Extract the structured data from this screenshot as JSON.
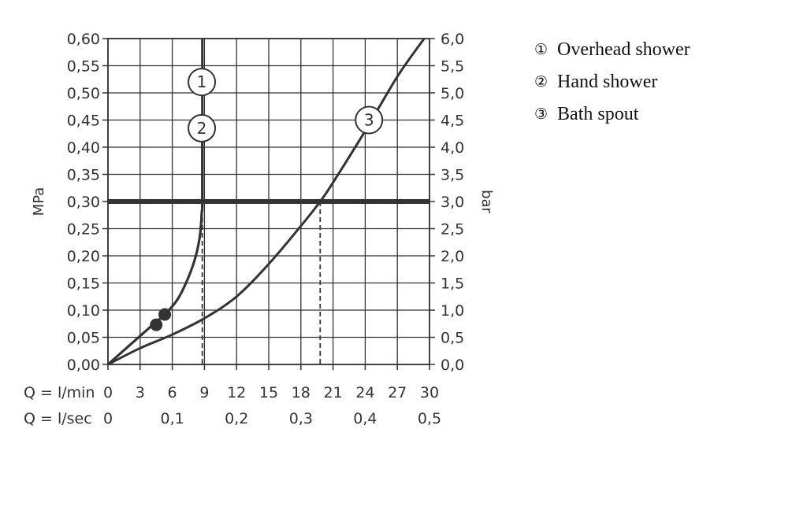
{
  "chart_data": {
    "type": "line",
    "ylabel_left": "MPa",
    "ylabel_right": "bar",
    "xlabel_1": "Q = l/min",
    "xlabel_2": "Q = l/sec",
    "xlim": [
      0,
      30
    ],
    "ylim": [
      0,
      0.6
    ],
    "grid": true,
    "x_ticks": [
      "0",
      "3",
      "6",
      "9",
      "12",
      "15",
      "18",
      "21",
      "24",
      "27",
      "30"
    ],
    "x2_ticks": [
      {
        "value": 0,
        "label": "0"
      },
      {
        "value": 6,
        "label": "0,1"
      },
      {
        "value": 12,
        "label": "0,2"
      },
      {
        "value": 18,
        "label": "0,3"
      },
      {
        "value": 24,
        "label": "0,4"
      },
      {
        "value": 30,
        "label": "0,5"
      }
    ],
    "y_ticks_left": [
      "0,00",
      "0,05",
      "0,10",
      "0,15",
      "0,20",
      "0,25",
      "0,30",
      "0,35",
      "0,40",
      "0,45",
      "0,50",
      "0,55",
      "0,60"
    ],
    "y_ticks_right": [
      "0,0",
      "0,5",
      "1,0",
      "1,5",
      "2,0",
      "2,5",
      "3,0",
      "3,5",
      "4,0",
      "4,5",
      "5,0",
      "5,5",
      "6,0"
    ],
    "reference_line": {
      "y": 0.3
    },
    "series": [
      {
        "marker": "1",
        "label_at": [
          8.9,
          0.52
        ],
        "x": [
          0,
          2,
          4,
          5.3,
          6.5,
          7.5,
          8.2,
          8.6,
          8.75,
          8.8,
          8.8,
          8.8
        ],
        "y": [
          0,
          0.035,
          0.07,
          0.092,
          0.12,
          0.16,
          0.2,
          0.24,
          0.28,
          0.3,
          0.45,
          0.6
        ]
      },
      {
        "marker": "2",
        "label_at": [
          8.9,
          0.435
        ],
        "x": [
          0,
          2,
          4,
          5.3,
          6.5,
          7.5,
          8.2,
          8.6,
          8.75,
          8.8,
          8.8
        ],
        "y": [
          0,
          0.035,
          0.07,
          0.092,
          0.12,
          0.16,
          0.2,
          0.24,
          0.28,
          0.3,
          0.43
        ]
      },
      {
        "marker": "3",
        "label_at": [
          24.5,
          0.45
        ],
        "x": [
          0,
          3,
          6,
          9,
          12,
          15,
          18,
          19.8,
          21,
          24,
          27,
          29.5
        ],
        "y": [
          0,
          0.03,
          0.055,
          0.085,
          0.125,
          0.185,
          0.255,
          0.3,
          0.335,
          0.43,
          0.53,
          0.6
        ]
      }
    ],
    "drop_lines": [
      {
        "x": 8.8,
        "y": 0.3
      },
      {
        "x": 19.8,
        "y": 0.3
      }
    ],
    "points": [
      {
        "x": 4.5,
        "y": 0.073
      },
      {
        "x": 5.3,
        "y": 0.092
      }
    ]
  },
  "legend": [
    {
      "num": "①",
      "label": "Overhead shower"
    },
    {
      "num": "②",
      "label": "Hand shower"
    },
    {
      "num": "③",
      "label": "Bath spout"
    }
  ]
}
